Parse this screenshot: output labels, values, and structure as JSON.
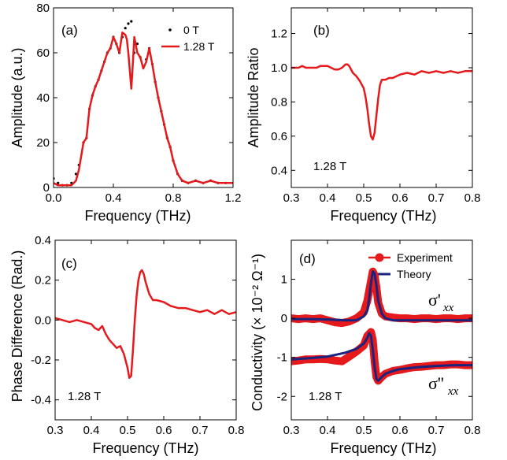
{
  "colors": {
    "red": "#e41a1c",
    "navy": "#1a237e",
    "black": "#000000"
  },
  "chart_data": [
    {
      "id": "a",
      "type": "line",
      "panel_label": "(a)",
      "xlabel": "Frequency (THz)",
      "ylabel": "Amplitude (a.u.)",
      "xlim": [
        0.0,
        1.2
      ],
      "ylim": [
        0,
        80
      ],
      "xticks": [
        "0.0",
        "0.4",
        "0.8",
        "1.2"
      ],
      "xtick_values": [
        0.0,
        0.4,
        0.8,
        1.2
      ],
      "yticks": [
        "0",
        "20",
        "40",
        "60",
        "80"
      ],
      "ytick_values": [
        0,
        20,
        40,
        60,
        80
      ],
      "legend": {
        "placement": "top-right",
        "entries": [
          "0 T",
          "1.28 T"
        ]
      },
      "series": [
        {
          "name": "0 T",
          "style": "dots",
          "color": "#000000",
          "x": [
            0.0,
            0.03,
            0.06,
            0.09,
            0.12,
            0.15,
            0.17,
            0.2,
            0.22,
            0.24,
            0.26,
            0.28,
            0.3,
            0.32,
            0.34,
            0.36,
            0.38,
            0.4,
            0.42,
            0.44,
            0.46,
            0.48,
            0.5,
            0.52,
            0.54,
            0.56,
            0.58,
            0.6,
            0.62,
            0.64,
            0.66,
            0.68,
            0.7,
            0.72,
            0.74,
            0.76,
            0.78,
            0.8,
            0.83,
            0.86,
            0.9,
            0.95,
            1.0,
            1.05,
            1.1,
            1.15,
            1.2
          ],
          "y": [
            4,
            2,
            1,
            1,
            2,
            6,
            10,
            20,
            22,
            35,
            41,
            45,
            48,
            52,
            56,
            60,
            62,
            67,
            64,
            60,
            67,
            71,
            73,
            74,
            60,
            64,
            58,
            54,
            57,
            62,
            55,
            47,
            40,
            34,
            28,
            22,
            18,
            12,
            6,
            3,
            2,
            3,
            2,
            3,
            2,
            2,
            2
          ]
        },
        {
          "name": "1.28 T",
          "style": "line",
          "color": "#e41a1c",
          "x": [
            0.0,
            0.03,
            0.06,
            0.09,
            0.12,
            0.15,
            0.17,
            0.2,
            0.22,
            0.24,
            0.26,
            0.28,
            0.3,
            0.32,
            0.34,
            0.36,
            0.38,
            0.4,
            0.42,
            0.44,
            0.46,
            0.48,
            0.49,
            0.5,
            0.51,
            0.52,
            0.53,
            0.54,
            0.56,
            0.58,
            0.6,
            0.62,
            0.64,
            0.66,
            0.68,
            0.7,
            0.72,
            0.74,
            0.76,
            0.78,
            0.8,
            0.83,
            0.86,
            0.9,
            0.95,
            1.0,
            1.05,
            1.1,
            1.15,
            1.2
          ],
          "y": [
            2,
            1,
            1,
            1,
            1,
            3,
            8,
            20,
            22,
            35,
            41,
            45,
            48,
            52,
            56,
            60,
            62,
            67,
            64,
            60,
            69,
            68,
            66,
            60,
            52,
            44,
            55,
            67,
            60,
            58,
            53,
            56,
            62,
            55,
            47,
            40,
            34,
            28,
            22,
            18,
            12,
            6,
            3,
            2,
            3,
            2,
            3,
            2,
            2,
            2
          ]
        }
      ]
    },
    {
      "id": "b",
      "type": "line",
      "panel_label": "(b)",
      "annotation": "1.28 T",
      "xlabel": "Frequency (THz)",
      "ylabel": "Amplitude Ratio",
      "xlim": [
        0.3,
        0.8
      ],
      "ylim": [
        0.3,
        1.35
      ],
      "xticks": [
        "0.3",
        "0.4",
        "0.5",
        "0.6",
        "0.7",
        "0.8"
      ],
      "xtick_values": [
        0.3,
        0.4,
        0.5,
        0.6,
        0.7,
        0.8
      ],
      "yticks": [
        "0.4",
        "0.6",
        "0.8",
        "1.0",
        "1.2"
      ],
      "ytick_values": [
        0.4,
        0.6,
        0.8,
        1.0,
        1.2
      ],
      "series": [
        {
          "style": "line",
          "color": "#e41a1c",
          "x": [
            0.3,
            0.31,
            0.32,
            0.33,
            0.34,
            0.35,
            0.36,
            0.37,
            0.38,
            0.39,
            0.4,
            0.41,
            0.42,
            0.43,
            0.44,
            0.45,
            0.455,
            0.46,
            0.47,
            0.48,
            0.49,
            0.5,
            0.505,
            0.51,
            0.515,
            0.52,
            0.525,
            0.53,
            0.535,
            0.54,
            0.545,
            0.55,
            0.56,
            0.57,
            0.58,
            0.59,
            0.6,
            0.62,
            0.64,
            0.66,
            0.68,
            0.7,
            0.72,
            0.74,
            0.76,
            0.78,
            0.8
          ],
          "y": [
            1.0,
            1.0,
            1.0,
            1.01,
            1.0,
            1.0,
            1.0,
            1.0,
            1.01,
            1.01,
            1.01,
            1.0,
            0.99,
            0.99,
            1.0,
            1.02,
            1.02,
            1.01,
            0.97,
            0.95,
            0.92,
            0.88,
            0.83,
            0.76,
            0.67,
            0.6,
            0.58,
            0.62,
            0.72,
            0.82,
            0.9,
            0.93,
            0.93,
            0.94,
            0.94,
            0.95,
            0.96,
            0.97,
            0.96,
            0.98,
            0.97,
            0.98,
            0.97,
            0.98,
            0.97,
            0.98,
            0.98
          ]
        }
      ]
    },
    {
      "id": "c",
      "type": "line",
      "panel_label": "(c)",
      "annotation": "1.28 T",
      "xlabel": "Frequency (THz)",
      "ylabel": "Phase Difference (Rad.)",
      "xlim": [
        0.3,
        0.8
      ],
      "ylim": [
        -0.5,
        0.4
      ],
      "xticks": [
        "0.3",
        "0.4",
        "0.5",
        "0.6",
        "0.7",
        "0.8"
      ],
      "xtick_values": [
        0.3,
        0.4,
        0.5,
        0.6,
        0.7,
        0.8
      ],
      "yticks": [
        "-0.4",
        "-0.2",
        "0.0",
        "0.2",
        "0.4"
      ],
      "ytick_values": [
        -0.4,
        -0.2,
        0.0,
        0.2,
        0.4
      ],
      "series": [
        {
          "style": "line",
          "color": "#e41a1c",
          "x": [
            0.3,
            0.32,
            0.34,
            0.36,
            0.38,
            0.4,
            0.41,
            0.42,
            0.43,
            0.44,
            0.45,
            0.46,
            0.47,
            0.48,
            0.49,
            0.5,
            0.505,
            0.51,
            0.515,
            0.52,
            0.525,
            0.53,
            0.535,
            0.54,
            0.545,
            0.55,
            0.56,
            0.57,
            0.58,
            0.6,
            0.62,
            0.64,
            0.66,
            0.68,
            0.7,
            0.72,
            0.74,
            0.76,
            0.78,
            0.8
          ],
          "y": [
            0.01,
            0.0,
            -0.01,
            0.0,
            -0.01,
            -0.02,
            -0.04,
            -0.05,
            -0.03,
            -0.07,
            -0.1,
            -0.12,
            -0.14,
            -0.13,
            -0.17,
            -0.24,
            -0.29,
            -0.28,
            -0.15,
            0.0,
            0.12,
            0.2,
            0.24,
            0.25,
            0.23,
            0.19,
            0.13,
            0.1,
            0.1,
            0.09,
            0.07,
            0.06,
            0.06,
            0.05,
            0.04,
            0.05,
            0.03,
            0.05,
            0.03,
            0.04
          ]
        }
      ]
    },
    {
      "id": "d",
      "type": "line",
      "panel_label": "(d)",
      "annotation": "1.28 T",
      "xlabel": "Frequency (THz)",
      "ylabel": "Conductivity (× 10⁻² Ω⁻¹)",
      "xlim": [
        0.3,
        0.8
      ],
      "ylim": [
        -2.6,
        2.0
      ],
      "xticks": [
        "0.3",
        "0.4",
        "0.5",
        "0.6",
        "0.7",
        "0.8"
      ],
      "xtick_values": [
        0.3,
        0.4,
        0.5,
        0.6,
        0.7,
        0.8
      ],
      "yticks": [
        "-2",
        "-1",
        "0",
        "1"
      ],
      "ytick_values": [
        -2,
        -1,
        0,
        1
      ],
      "legend": {
        "placement": "top-right",
        "entries": [
          "Experiment",
          "Theory"
        ]
      },
      "curve_labels": {
        "upper": "σ'",
        "upper_sub": "xx",
        "lower": "σ''",
        "lower_sub": "xx"
      },
      "series": [
        {
          "name": "Experiment",
          "style": "markers",
          "color": "#e41a1c",
          "x": [
            0.3,
            0.32,
            0.34,
            0.36,
            0.38,
            0.4,
            0.42,
            0.44,
            0.46,
            0.48,
            0.5,
            0.51,
            0.52,
            0.525,
            0.53,
            0.535,
            0.54,
            0.55,
            0.56,
            0.58,
            0.6,
            0.62,
            0.64,
            0.66,
            0.68,
            0.7,
            0.72,
            0.74,
            0.76,
            0.78,
            0.8
          ],
          "y": [
            0.0,
            -0.02,
            0.0,
            -0.02,
            0.0,
            -0.05,
            -0.1,
            -0.12,
            -0.08,
            0.0,
            0.15,
            0.45,
            0.95,
            1.2,
            1.1,
            0.8,
            0.4,
            0.12,
            0.05,
            0.02,
            0.0,
            0.0,
            -0.02,
            0.0,
            0.0,
            -0.02,
            0.0,
            0.0,
            -0.02,
            0.0,
            0.0
          ]
        },
        {
          "name": "Experiment",
          "style": "markers",
          "color": "#e41a1c",
          "x": [
            0.3,
            0.32,
            0.34,
            0.36,
            0.38,
            0.4,
            0.42,
            0.44,
            0.46,
            0.48,
            0.5,
            0.51,
            0.52,
            0.525,
            0.53,
            0.535,
            0.54,
            0.55,
            0.56,
            0.58,
            0.6,
            0.62,
            0.64,
            0.66,
            0.68,
            0.7,
            0.72,
            0.74,
            0.76,
            0.78,
            0.8
          ],
          "y": [
            -1.1,
            -1.08,
            -1.05,
            -1.05,
            -1.04,
            -1.05,
            -1.08,
            -1.1,
            -0.98,
            -0.85,
            -0.7,
            -0.45,
            -0.35,
            -0.55,
            -1.1,
            -1.5,
            -1.6,
            -1.5,
            -1.42,
            -1.35,
            -1.32,
            -1.28,
            -1.25,
            -1.24,
            -1.22,
            -1.2,
            -1.2,
            -1.18,
            -1.18,
            -1.2,
            -1.2
          ]
        },
        {
          "name": "Theory",
          "style": "line",
          "color": "#1a237e",
          "x": [
            0.3,
            0.35,
            0.4,
            0.45,
            0.48,
            0.5,
            0.51,
            0.515,
            0.52,
            0.525,
            0.53,
            0.535,
            0.54,
            0.55,
            0.56,
            0.58,
            0.6,
            0.65,
            0.7,
            0.75,
            0.8
          ],
          "y": [
            -0.02,
            -0.02,
            -0.03,
            -0.05,
            -0.05,
            0.05,
            0.2,
            0.5,
            0.9,
            1.2,
            1.15,
            0.85,
            0.45,
            0.12,
            0.0,
            -0.05,
            -0.05,
            -0.05,
            -0.05,
            -0.05,
            -0.05
          ]
        },
        {
          "name": "Theory",
          "style": "line",
          "color": "#1a237e",
          "x": [
            0.3,
            0.35,
            0.4,
            0.45,
            0.48,
            0.5,
            0.51,
            0.515,
            0.52,
            0.525,
            0.53,
            0.535,
            0.54,
            0.55,
            0.56,
            0.58,
            0.6,
            0.65,
            0.7,
            0.75,
            0.8
          ],
          "y": [
            -1.05,
            -1.02,
            -0.98,
            -0.88,
            -0.78,
            -0.65,
            -0.5,
            -0.38,
            -0.45,
            -0.8,
            -1.25,
            -1.55,
            -1.6,
            -1.5,
            -1.42,
            -1.35,
            -1.3,
            -1.25,
            -1.22,
            -1.2,
            -1.2
          ]
        }
      ]
    }
  ]
}
